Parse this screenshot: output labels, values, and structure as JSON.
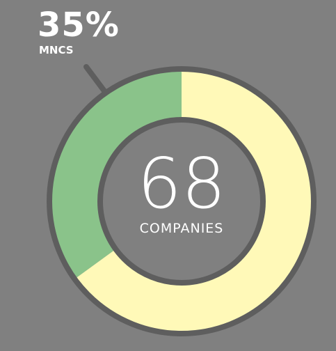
{
  "callout": {
    "value": "35%",
    "label": "MNCS"
  },
  "center": {
    "number": "68",
    "label": "COMPANIES"
  },
  "colors": {
    "background": "#808080",
    "mncs": "#8ac38a",
    "other": "#fff9b8",
    "ring": "#5e5e5e",
    "text": "#ffffff"
  },
  "chart_data": {
    "type": "pie",
    "total": 68,
    "slices": [
      {
        "label": "MNCS",
        "value": 35,
        "color": "#8ac38a"
      },
      {
        "value": 65,
        "color": "#fff9b8"
      }
    ]
  }
}
